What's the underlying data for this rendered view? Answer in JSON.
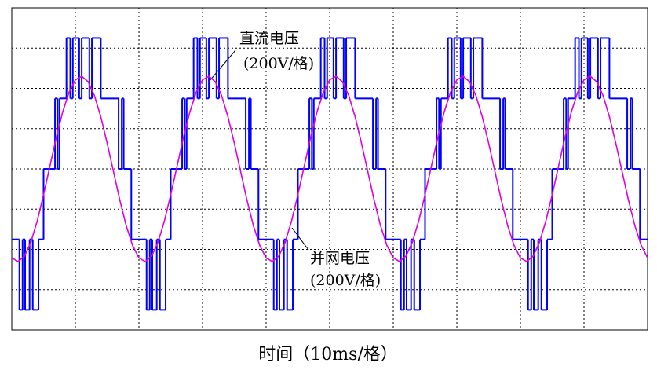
{
  "chart_data": {
    "type": "line",
    "xlabel": "时间（10ms/格）",
    "xlim": [
      0,
      100
    ],
    "ylim": [
      -800,
      800
    ],
    "xticks": [
      0,
      10,
      20,
      30,
      40,
      50,
      60,
      70,
      80,
      90,
      100
    ],
    "yticks": [
      -800,
      -600,
      -400,
      -200,
      0,
      200,
      400,
      600,
      800
    ],
    "grid": true,
    "series": [
      {
        "name": "直流电压",
        "unit_label": "(200V/格)",
        "color": "#0000ff",
        "step": true,
        "x": [
          0,
          1.2,
          1.7,
          2.1,
          2.8,
          3.3,
          4.2,
          5.0,
          6.8,
          7.2,
          7.5,
          8.6,
          9.2,
          9.6,
          10.6,
          11.0,
          12.2,
          12.6,
          14.0,
          16.8,
          17.3,
          17.6,
          18.8,
          20,
          21.2,
          21.7,
          22.1,
          22.8,
          23.3,
          24.2,
          25.0,
          26.8,
          27.2,
          27.5,
          28.6,
          29.2,
          29.6,
          30.6,
          31.0,
          32.2,
          32.6,
          34.0,
          36.8,
          37.3,
          37.6,
          38.8,
          40,
          41.2,
          41.7,
          42.1,
          42.8,
          43.3,
          44.2,
          45.0,
          46.8,
          47.2,
          47.5,
          48.6,
          49.2,
          49.6,
          50.6,
          51.0,
          52.2,
          52.6,
          54.0,
          56.8,
          57.3,
          57.6,
          58.8,
          60,
          61.2,
          61.7,
          62.1,
          62.8,
          63.3,
          64.2,
          65.0,
          66.8,
          67.2,
          67.5,
          68.6,
          69.2,
          69.6,
          70.6,
          71.0,
          72.2,
          72.6,
          74.0,
          76.8,
          77.3,
          77.6,
          78.8,
          80,
          81.2,
          81.7,
          82.1,
          82.8,
          83.3,
          84.2,
          85.0,
          86.8,
          87.2,
          87.5,
          88.6,
          89.2,
          89.6,
          90.6,
          91.0,
          92.2,
          92.6,
          94.0,
          96.8,
          97.3,
          97.6,
          98.8,
          100
        ],
        "values": [
          -350,
          -700,
          -350,
          -700,
          -350,
          -700,
          -350,
          0,
          350,
          0,
          350,
          650,
          350,
          650,
          350,
          650,
          350,
          650,
          350,
          0,
          350,
          0,
          -350,
          -350,
          -700,
          -350,
          -700,
          -350,
          -700,
          -350,
          0,
          350,
          0,
          350,
          650,
          350,
          650,
          350,
          650,
          350,
          650,
          350,
          0,
          350,
          0,
          -350,
          -350,
          -700,
          -350,
          -700,
          -350,
          -700,
          -350,
          0,
          350,
          0,
          350,
          650,
          350,
          650,
          350,
          650,
          350,
          650,
          350,
          0,
          350,
          0,
          -350,
          -350,
          -700,
          -350,
          -700,
          -350,
          -700,
          -350,
          0,
          350,
          0,
          350,
          650,
          350,
          650,
          350,
          650,
          350,
          650,
          350,
          0,
          350,
          0,
          -350,
          -350,
          -700,
          -350,
          -700,
          -350,
          -700,
          -350,
          0,
          350,
          0,
          350,
          650,
          350,
          650,
          350,
          650,
          350,
          650,
          350,
          0,
          350,
          0,
          -350,
          -350
        ]
      },
      {
        "name": "并网电压",
        "unit_label": "(200V/格)",
        "color": "#e000e0",
        "x": [
          0,
          1,
          2,
          3,
          4,
          5,
          6,
          7,
          8,
          9,
          10,
          11,
          12,
          13,
          14,
          15,
          16,
          17,
          18,
          19,
          20,
          21,
          22,
          23,
          24,
          25,
          26,
          27,
          28,
          29,
          30,
          31,
          32,
          33,
          34,
          35,
          36,
          37,
          38,
          39,
          40,
          41,
          42,
          43,
          44,
          45,
          46,
          47,
          48,
          49,
          50,
          51,
          52,
          53,
          54,
          55,
          56,
          57,
          58,
          59,
          60,
          61,
          62,
          63,
          64,
          65,
          66,
          67,
          68,
          69,
          70,
          71,
          72,
          73,
          74,
          75,
          76,
          77,
          78,
          79,
          80,
          81,
          82,
          83,
          84,
          85,
          86,
          87,
          88,
          89,
          90,
          91,
          92,
          93,
          94,
          95,
          96,
          97,
          98,
          99,
          100
        ],
        "values": [
          -442,
          -460,
          -433,
          -364,
          -259,
          -128,
          14,
          156,
          282,
          380,
          442,
          460,
          433,
          364,
          259,
          128,
          -14,
          -156,
          -282,
          -380,
          -442,
          -460,
          -433,
          -364,
          -259,
          -128,
          14,
          156,
          282,
          380,
          442,
          460,
          433,
          364,
          259,
          128,
          -14,
          -156,
          -282,
          -380,
          -442,
          -460,
          -433,
          -364,
          -259,
          -128,
          14,
          156,
          282,
          380,
          442,
          460,
          433,
          364,
          259,
          128,
          -14,
          -156,
          -282,
          -380,
          -442,
          -460,
          -433,
          -364,
          -259,
          -128,
          14,
          156,
          282,
          380,
          442,
          460,
          433,
          364,
          259,
          128,
          -14,
          -156,
          -282,
          -380,
          -442,
          -460,
          -433,
          -364,
          -259,
          -128,
          14,
          156,
          282,
          380,
          442,
          460,
          433,
          364,
          259,
          128,
          -14,
          -156,
          -282,
          -380,
          -442
        ]
      }
    ]
  }
}
